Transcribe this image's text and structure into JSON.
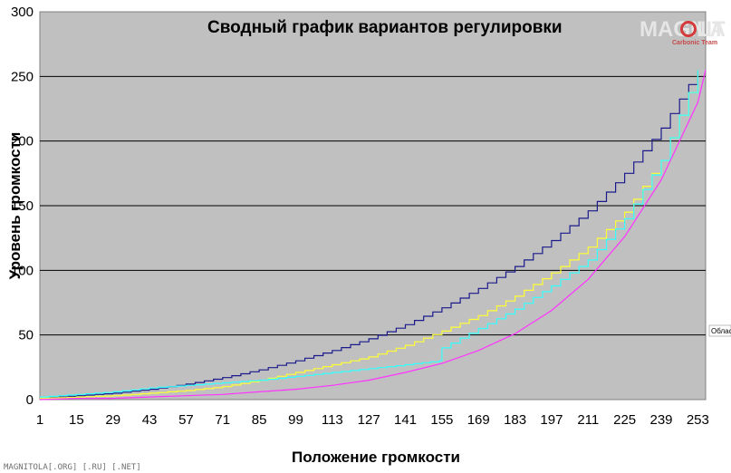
{
  "chart_data": {
    "type": "line",
    "title": "Сводный график вариантов регулировки",
    "xlabel": "Положение громкости",
    "ylabel": "Уровень громкости",
    "x_range": [
      1,
      256
    ],
    "ylim": [
      0,
      300
    ],
    "y_ticks": [
      0,
      50,
      100,
      150,
      200,
      250,
      300
    ],
    "x_ticks": [
      1,
      15,
      29,
      43,
      57,
      71,
      85,
      99,
      113,
      127,
      141,
      155,
      169,
      183,
      197,
      211,
      225,
      239,
      253
    ],
    "grid": "horizontal",
    "plot_background": "#c0c0c0",
    "series": [
      {
        "color": "#1a1a8c",
        "style": "step",
        "points": [
          [
            1,
            1
          ],
          [
            15,
            3
          ],
          [
            29,
            5
          ],
          [
            43,
            8
          ],
          [
            57,
            12
          ],
          [
            71,
            17
          ],
          [
            85,
            23
          ],
          [
            99,
            30
          ],
          [
            113,
            38
          ],
          [
            127,
            47
          ],
          [
            141,
            58
          ],
          [
            155,
            71
          ],
          [
            169,
            86
          ],
          [
            183,
            103
          ],
          [
            197,
            123
          ],
          [
            211,
            146
          ],
          [
            225,
            175
          ],
          [
            239,
            210
          ],
          [
            253,
            255
          ]
        ]
      },
      {
        "color": "#ffff33",
        "style": "step",
        "points": [
          [
            1,
            1
          ],
          [
            15,
            2
          ],
          [
            29,
            3
          ],
          [
            43,
            5
          ],
          [
            57,
            7
          ],
          [
            71,
            10
          ],
          [
            85,
            15
          ],
          [
            99,
            21
          ],
          [
            113,
            27
          ],
          [
            127,
            33
          ],
          [
            141,
            42
          ],
          [
            155,
            53
          ],
          [
            169,
            65
          ],
          [
            183,
            80
          ],
          [
            197,
            98
          ],
          [
            211,
            118
          ],
          [
            225,
            145
          ],
          [
            239,
            185
          ],
          [
            253,
            255
          ]
        ]
      },
      {
        "color": "#33ffff",
        "style": "step",
        "points": [
          [
            1,
            2
          ],
          [
            15,
            4
          ],
          [
            29,
            6
          ],
          [
            43,
            9
          ],
          [
            57,
            11
          ],
          [
            71,
            13
          ],
          [
            85,
            15
          ],
          [
            99,
            18
          ],
          [
            113,
            21
          ],
          [
            127,
            24
          ],
          [
            141,
            27
          ],
          [
            154,
            30
          ],
          [
            155,
            40
          ],
          [
            169,
            55
          ],
          [
            183,
            70
          ],
          [
            197,
            88
          ],
          [
            211,
            108
          ],
          [
            225,
            140
          ],
          [
            239,
            185
          ],
          [
            253,
            255
          ]
        ]
      },
      {
        "color": "#ff33ff",
        "style": "line",
        "points": [
          [
            1,
            0
          ],
          [
            15,
            1
          ],
          [
            29,
            1
          ],
          [
            43,
            2
          ],
          [
            57,
            3
          ],
          [
            71,
            4
          ],
          [
            85,
            6
          ],
          [
            99,
            8
          ],
          [
            113,
            11
          ],
          [
            127,
            15
          ],
          [
            141,
            21
          ],
          [
            155,
            28
          ],
          [
            169,
            38
          ],
          [
            183,
            51
          ],
          [
            197,
            69
          ],
          [
            211,
            93
          ],
          [
            225,
            126
          ],
          [
            239,
            170
          ],
          [
            253,
            230
          ],
          [
            256,
            255
          ]
        ]
      }
    ]
  },
  "watermark": {
    "brand_left": "MAGNIT",
    "brand_right": "LA",
    "team": "Carbonic Team"
  },
  "footer": {
    "text": "MAGNITOLA[.ORG] [.RU] [.NET]"
  },
  "side_tag": "Облас"
}
